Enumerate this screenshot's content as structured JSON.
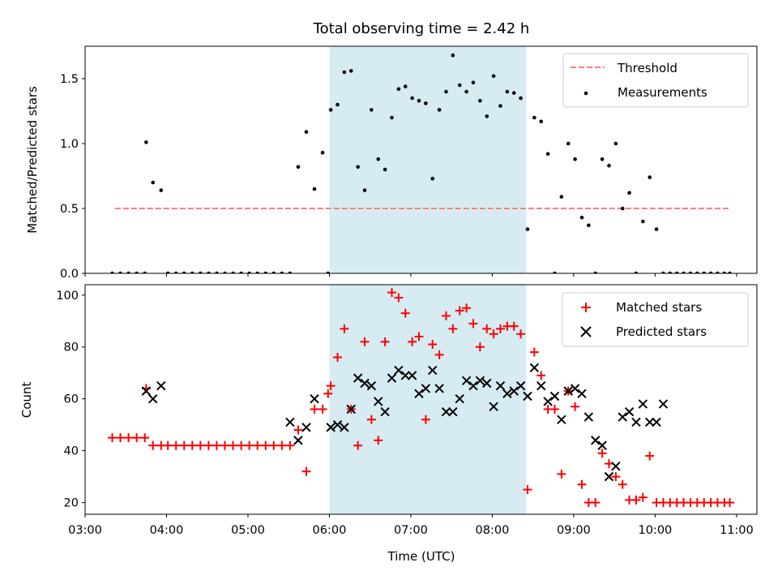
{
  "chart_data": [
    {
      "type": "scatter",
      "title": "Total observing time = 2.42 h",
      "ylabel": "Matched/Predicted stars",
      "xlabel": "",
      "ylim": [
        0,
        1.75
      ],
      "xlim": [
        "03:00",
        "11:15"
      ],
      "yticks": [
        "0.0",
        "0.5",
        "1.0",
        "1.5"
      ],
      "highlight_span": [
        "06:00",
        "08:25"
      ],
      "highlight_color": "#add8e6",
      "legend_position": "upper right",
      "threshold": {
        "name": "Threshold",
        "y": 0.5,
        "x_start": "03:22",
        "x_end": "10:55",
        "color": "#ff7f7f",
        "style": "dashed"
      },
      "series": [
        {
          "name": "Measurements",
          "color": "#000000",
          "marker": "dot",
          "x": [
            "03:20",
            "03:26",
            "03:32",
            "03:38",
            "03:44",
            "03:45",
            "03:50",
            "03:56",
            "04:01",
            "04:07",
            "04:13",
            "04:19",
            "04:25",
            "04:31",
            "04:37",
            "04:43",
            "04:49",
            "04:55",
            "05:01",
            "05:07",
            "05:13",
            "05:19",
            "05:25",
            "05:31",
            "05:37",
            "05:43",
            "05:49",
            "05:55",
            "05:59",
            "06:01",
            "06:06",
            "06:11",
            "06:16",
            "06:21",
            "06:26",
            "06:31",
            "06:36",
            "06:41",
            "06:46",
            "06:51",
            "06:56",
            "07:01",
            "07:06",
            "07:11",
            "07:16",
            "07:21",
            "07:26",
            "07:31",
            "07:36",
            "07:41",
            "07:46",
            "07:51",
            "07:56",
            "08:01",
            "08:06",
            "08:11",
            "08:16",
            "08:21",
            "08:26",
            "08:31",
            "08:36",
            "08:41",
            "08:46",
            "08:51",
            "08:56",
            "09:01",
            "09:06",
            "09:11",
            "09:16",
            "09:21",
            "09:26",
            "09:31",
            "09:36",
            "09:41",
            "09:46",
            "09:51",
            "09:56",
            "10:01",
            "10:06",
            "10:11",
            "10:16",
            "10:21",
            "10:26",
            "10:31",
            "10:36",
            "10:41",
            "10:46",
            "10:51",
            "10:55"
          ],
          "y": [
            0,
            0,
            0,
            0,
            0,
            1.01,
            0.7,
            0.64,
            0,
            0,
            0,
            0,
            0,
            0,
            0,
            0,
            0,
            0,
            0,
            0,
            0,
            0,
            0,
            0,
            0.82,
            1.09,
            0.65,
            0.93,
            0,
            1.26,
            1.3,
            1.55,
            1.56,
            0.82,
            0.64,
            1.26,
            0.88,
            0.8,
            1.2,
            1.42,
            1.44,
            1.35,
            1.33,
            1.31,
            0.73,
            1.26,
            1.4,
            1.68,
            1.45,
            1.4,
            1.47,
            1.33,
            1.21,
            1.52,
            1.29,
            1.4,
            1.39,
            1.35,
            0.34,
            1.2,
            1.17,
            0.92,
            0,
            0.59,
            1.0,
            0.88,
            0.43,
            0.37,
            0,
            0.88,
            0.83,
            1.0,
            0.5,
            0.62,
            0,
            0.4,
            0.74,
            0.34,
            0,
            0,
            0,
            0,
            0,
            0,
            0,
            0,
            0,
            0,
            0
          ]
        }
      ]
    },
    {
      "type": "scatter",
      "title": "",
      "xlabel": "Time (UTC)",
      "ylabel": "Count",
      "ylim": [
        15.5,
        104
      ],
      "xlim": [
        "03:00",
        "11:15"
      ],
      "xticks": [
        "03:00",
        "04:00",
        "05:00",
        "06:00",
        "07:00",
        "08:00",
        "09:00",
        "10:00",
        "11:00"
      ],
      "yticks": [
        "20",
        "40",
        "60",
        "80",
        "100"
      ],
      "highlight_span": [
        "06:00",
        "08:25"
      ],
      "highlight_color": "#add8e6",
      "legend_position": "upper right",
      "series": [
        {
          "name": "Matched stars",
          "color": "#ff0000",
          "marker": "plus",
          "x": [
            "03:20",
            "03:26",
            "03:32",
            "03:38",
            "03:44",
            "03:45",
            "03:50",
            "03:56",
            "04:01",
            "04:07",
            "04:13",
            "04:19",
            "04:25",
            "04:31",
            "04:37",
            "04:43",
            "04:49",
            "04:55",
            "05:01",
            "05:07",
            "05:13",
            "05:19",
            "05:25",
            "05:31",
            "05:37",
            "05:43",
            "05:49",
            "05:55",
            "05:59",
            "06:01",
            "06:06",
            "06:11",
            "06:16",
            "06:21",
            "06:26",
            "06:31",
            "06:36",
            "06:41",
            "06:46",
            "06:51",
            "06:56",
            "07:01",
            "07:06",
            "07:11",
            "07:16",
            "07:21",
            "07:26",
            "07:31",
            "07:36",
            "07:41",
            "07:46",
            "07:51",
            "07:56",
            "08:01",
            "08:06",
            "08:11",
            "08:16",
            "08:21",
            "08:26",
            "08:31",
            "08:36",
            "08:41",
            "08:46",
            "08:51",
            "08:56",
            "09:01",
            "09:06",
            "09:11",
            "09:16",
            "09:21",
            "09:26",
            "09:31",
            "09:36",
            "09:41",
            "09:46",
            "09:51",
            "09:56",
            "10:01",
            "10:06",
            "10:11",
            "10:16",
            "10:21",
            "10:26",
            "10:31",
            "10:36",
            "10:41",
            "10:46",
            "10:51",
            "10:55"
          ],
          "y": [
            45,
            45,
            45,
            45,
            45,
            64,
            42,
            42,
            42,
            42,
            42,
            42,
            42,
            42,
            42,
            42,
            42,
            42,
            42,
            42,
            42,
            42,
            42,
            42,
            48,
            32,
            56,
            56,
            62,
            65,
            76,
            87,
            56,
            42,
            82,
            52,
            44,
            82,
            101,
            99,
            93,
            82,
            84,
            52,
            81,
            77,
            92,
            87,
            94,
            95,
            89,
            80,
            87,
            85,
            87,
            88,
            88,
            85,
            25,
            78,
            69,
            56,
            56,
            31,
            63,
            57,
            27,
            20,
            20,
            39,
            35,
            30,
            27,
            21,
            21,
            22,
            38,
            20,
            20,
            20,
            20,
            20,
            20,
            20,
            20,
            20,
            20,
            20,
            20
          ]
        },
        {
          "name": "Predicted stars",
          "color": "#000000",
          "marker": "x",
          "x": [
            "03:45",
            "03:50",
            "03:56",
            "05:31",
            "05:37",
            "05:43",
            "05:49",
            "06:01",
            "06:06",
            "06:11",
            "06:16",
            "06:21",
            "06:26",
            "06:31",
            "06:36",
            "06:41",
            "06:46",
            "06:51",
            "06:56",
            "07:01",
            "07:06",
            "07:11",
            "07:16",
            "07:21",
            "07:26",
            "07:31",
            "07:36",
            "07:41",
            "07:46",
            "07:51",
            "07:56",
            "08:01",
            "08:06",
            "08:11",
            "08:16",
            "08:21",
            "08:26",
            "08:31",
            "08:36",
            "08:41",
            "08:46",
            "08:51",
            "08:56",
            "09:01",
            "09:06",
            "09:11",
            "09:16",
            "09:21",
            "09:26",
            "09:31",
            "09:36",
            "09:41",
            "09:46",
            "09:51",
            "09:56",
            "10:01",
            "10:06"
          ],
          "y": [
            63,
            60,
            65,
            51,
            44,
            49,
            60,
            49,
            50,
            49,
            56,
            68,
            66,
            65,
            59,
            55,
            68,
            71,
            69,
            69,
            62,
            64,
            71,
            64,
            55,
            55,
            60,
            67,
            65,
            67,
            66,
            57,
            65,
            62,
            63,
            65,
            61,
            72,
            65,
            59,
            61,
            52,
            63,
            64,
            62,
            53,
            44,
            42,
            30,
            34,
            53,
            55,
            51,
            58,
            51,
            51,
            58
          ]
        }
      ]
    }
  ]
}
